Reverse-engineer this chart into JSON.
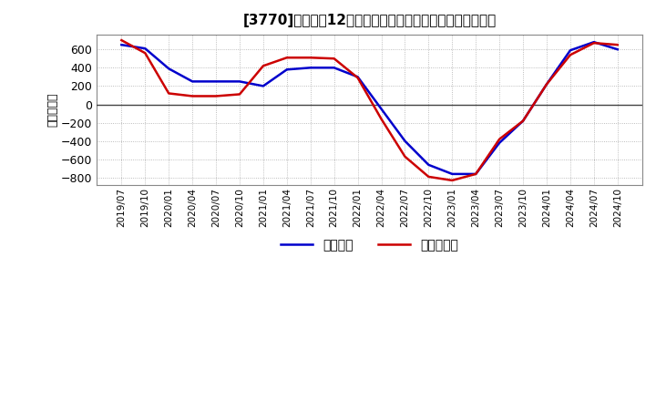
{
  "title": "[3770]　利益の12か月移動合計の対前年同期増減額の推移",
  "ylabel": "（百万円）",
  "legend_blue": "経常利益",
  "legend_red": "当期純利益",
  "background_color": "#ffffff",
  "plot_bg_color": "#ffffff",
  "grid_color": "#aaaaaa",
  "ylim": [
    -880,
    760
  ],
  "yticks": [
    -800,
    -600,
    -400,
    -200,
    0,
    200,
    400,
    600
  ],
  "x_labels": [
    "2019/07",
    "2019/10",
    "2020/01",
    "2020/04",
    "2020/07",
    "2020/10",
    "2021/01",
    "2021/04",
    "2021/07",
    "2021/10",
    "2022/01",
    "2022/04",
    "2022/07",
    "2022/10",
    "2023/01",
    "2023/04",
    "2023/07",
    "2023/10",
    "2024/01",
    "2024/04",
    "2024/07",
    "2024/10"
  ],
  "blue_values": [
    650,
    610,
    390,
    250,
    250,
    250,
    200,
    380,
    400,
    400,
    300,
    -50,
    -400,
    -660,
    -760,
    -760,
    -420,
    -180,
    220,
    590,
    680,
    600
  ],
  "red_values": [
    700,
    560,
    120,
    90,
    90,
    110,
    420,
    510,
    510,
    500,
    290,
    -160,
    -570,
    -790,
    -830,
    -760,
    -380,
    -180,
    220,
    540,
    670,
    650
  ],
  "line_color_blue": "#0000cc",
  "line_color_red": "#cc0000",
  "line_width": 1.8
}
